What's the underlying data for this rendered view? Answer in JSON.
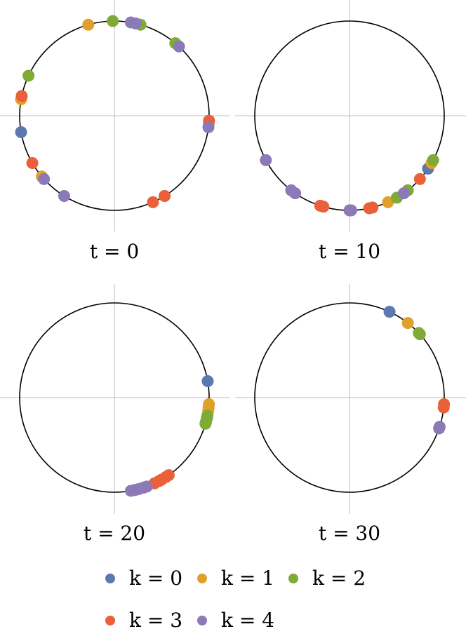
{
  "chart_data": {
    "type": "scatter",
    "description_units": "angle in degrees, counter-clockwise from positive x-axis, points on unit circle",
    "series_colors": {
      "k0": "#5b79b0",
      "k1": "#e0a12a",
      "k2": "#7faa35",
      "k3": "#e9603a",
      "k4": "#8b79b8"
    },
    "panels": [
      {
        "label": "t = 0",
        "points": {
          "k0": [
            -170
          ],
          "k1": [
            106,
            170,
            -5,
            -140
          ],
          "k2": [
            91,
            74,
            50,
            155,
            -58
          ],
          "k3": [
            -3,
            168,
            -150,
            -66,
            -58
          ],
          "k4": [
            80,
            77,
            47,
            -7,
            -138,
            -122
          ]
        }
      },
      {
        "label": "t = 10",
        "points": {
          "k0": [
            -34
          ],
          "k1": [
            -30,
            -66
          ],
          "k2": [
            -28,
            -52,
            -60,
            -76
          ],
          "k3": [
            -42,
            -106,
            -108,
            -78,
            -76
          ],
          "k4": [
            -152,
            -128,
            -125,
            -89,
            -90,
            -55
          ]
        }
      },
      {
        "label": "t = 20",
        "points": {
          "k0": [
            10
          ],
          "k1": [
            -4,
            -6,
            -8
          ],
          "k2": [
            -11,
            -12,
            -13,
            -15,
            -16
          ],
          "k3": [
            -65,
            -62,
            -60,
            -57,
            -55
          ],
          "k4": [
            -80,
            -78,
            -77,
            -75,
            -72,
            -70
          ]
        }
      },
      {
        "label": "t = 30",
        "points": {
          "k0": [
            65
          ],
          "k1": [
            52
          ],
          "k2": [
            42,
            43
          ],
          "k3": [
            -4,
            -6
          ],
          "k4": [
            -18,
            -19
          ]
        }
      }
    ],
    "legend": [
      {
        "key": "k0",
        "label": "k = 0"
      },
      {
        "key": "k1",
        "label": "k = 1"
      },
      {
        "key": "k2",
        "label": "k = 2"
      },
      {
        "key": "k3",
        "label": "k = 3"
      },
      {
        "key": "k4",
        "label": "k = 4"
      }
    ]
  }
}
